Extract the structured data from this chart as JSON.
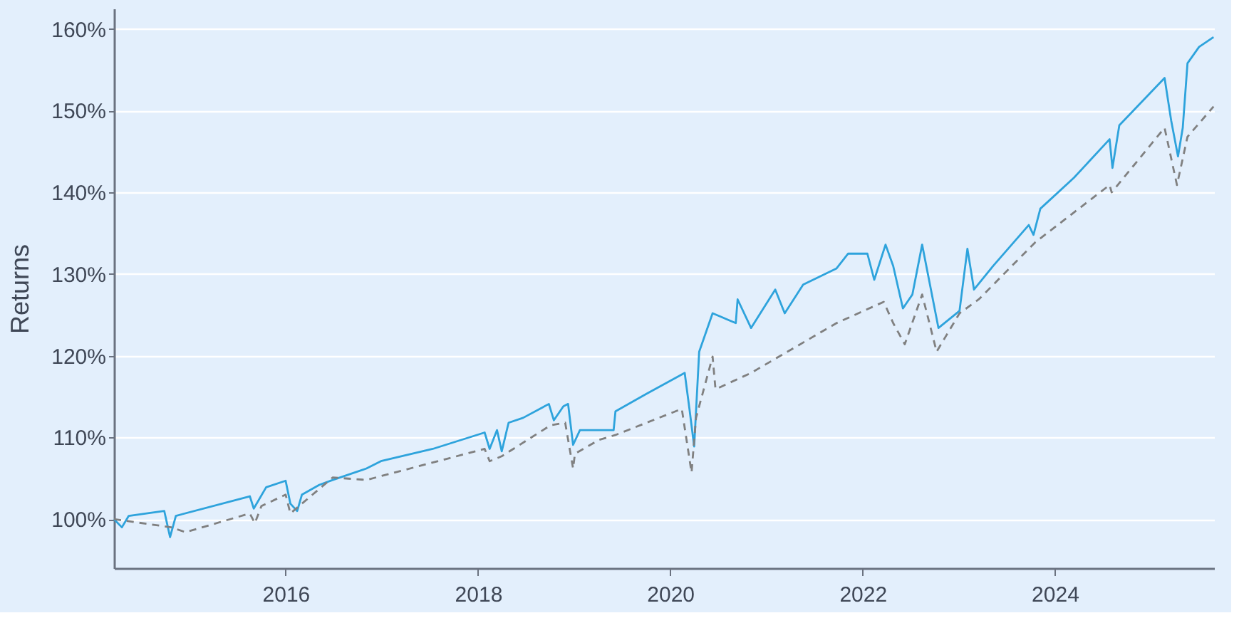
{
  "chart_data": {
    "type": "line",
    "ylabel": "Returns",
    "xlim": [
      "2014-03-20",
      "2025-08-28"
    ],
    "xticks": [
      {
        "value": "2016-01-01",
        "label": "2016"
      },
      {
        "value": "2018-01-01",
        "label": "2018"
      },
      {
        "value": "2020-01-01",
        "label": "2020"
      },
      {
        "value": "2022-01-01",
        "label": "2022"
      },
      {
        "value": "2024-01-01",
        "label": "2024"
      }
    ],
    "ylim": [
      94,
      162.5
    ],
    "yticks": [
      {
        "value": 100,
        "label": "100%"
      },
      {
        "value": 110,
        "label": "110%"
      },
      {
        "value": 120,
        "label": "120%"
      },
      {
        "value": 130,
        "label": "130%"
      },
      {
        "value": 140,
        "label": "140%"
      },
      {
        "value": 150,
        "label": "150%"
      },
      {
        "value": 160,
        "label": "160%"
      }
    ],
    "grid": "y",
    "series": [
      {
        "color": "#2ea3dc",
        "line_style": "solid",
        "x": [
          "2014-03-20",
          "2014-04-19",
          "2014-05-15",
          "2014-09-27",
          "2014-10-19",
          "2014-11-10",
          "2015-08-18",
          "2015-09-02",
          "2015-10-19",
          "2016-01-01",
          "2016-01-19",
          "2016-02-14",
          "2016-03-03",
          "2016-05-08",
          "2016-06-28",
          "2016-11-03",
          "2016-12-28",
          "2017-07-13",
          "2018-01-26",
          "2018-02-14",
          "2018-03-14",
          "2018-04-01",
          "2018-04-27",
          "2018-06-21",
          "2018-09-27",
          "2018-10-16",
          "2018-11-21",
          "2018-12-09",
          "2018-12-28",
          "2019-01-23",
          "2019-05-31",
          "2019-06-07",
          "2019-10-01",
          "2020-02-25",
          "2020-03-14",
          "2020-04-01",
          "2020-04-20",
          "2020-06-10",
          "2020-09-06",
          "2020-09-13",
          "2020-11-03",
          "2021-02-03",
          "2021-03-11",
          "2021-05-20",
          "2021-09-24",
          "2021-11-07",
          "2022-01-19",
          "2022-02-14",
          "2022-03-29",
          "2022-04-27",
          "2022-06-03",
          "2022-07-09",
          "2022-08-15",
          "2022-10-16",
          "2023-01-04",
          "2023-02-03",
          "2023-02-28",
          "2023-05-12",
          "2023-09-24",
          "2023-10-12",
          "2023-11-07",
          "2024-03-14",
          "2024-07-27",
          "2024-08-07",
          "2024-09-02",
          "2025-02-21",
          "2025-03-18",
          "2025-04-13",
          "2025-05-01",
          "2025-05-19",
          "2025-07-02",
          "2025-08-26"
        ],
        "values": [
          100.0,
          99.0,
          100.4,
          101.0,
          97.8,
          100.4,
          102.8,
          101.3,
          103.9,
          104.7,
          101.9,
          101.0,
          103.0,
          104.2,
          104.8,
          106.2,
          107.1,
          108.6,
          110.6,
          108.6,
          110.9,
          108.3,
          111.8,
          112.4,
          114.1,
          112.1,
          113.8,
          114.1,
          109.1,
          110.9,
          110.9,
          113.2,
          115.3,
          117.9,
          113.5,
          108.9,
          120.5,
          125.2,
          124.0,
          126.9,
          123.4,
          128.1,
          125.2,
          128.7,
          130.7,
          132.5,
          132.5,
          129.3,
          133.6,
          131.0,
          125.8,
          127.5,
          133.6,
          123.4,
          125.5,
          133.1,
          128.1,
          131.0,
          136.0,
          134.8,
          138.0,
          141.8,
          146.5,
          143.0,
          148.2,
          154.0,
          148.8,
          144.4,
          147.9,
          155.8,
          157.8,
          159.0
        ]
      },
      {
        "color": "#808080",
        "line_style": "dashed",
        "x": [
          "2014-03-20",
          "2014-10-23",
          "2014-12-17",
          "2015-08-18",
          "2015-09-06",
          "2015-10-01",
          "2016-01-01",
          "2016-01-19",
          "2016-06-28",
          "2016-11-03",
          "2018-01-26",
          "2018-02-14",
          "2018-04-01",
          "2018-10-04",
          "2018-11-28",
          "2018-12-28",
          "2019-01-04",
          "2019-04-05",
          "2019-06-07",
          "2020-02-14",
          "2020-03-22",
          "2020-04-08",
          "2020-06-10",
          "2020-06-21",
          "2020-11-03",
          "2021-09-24",
          "2022-03-22",
          "2022-04-27",
          "2022-06-10",
          "2022-08-15",
          "2022-10-09",
          "2023-01-04",
          "2023-03-18",
          "2023-10-19",
          "2024-07-27",
          "2024-08-04",
          "2025-02-21",
          "2025-04-09",
          "2025-05-19",
          "2025-08-26"
        ],
        "values": [
          100.0,
          99.0,
          98.4,
          100.7,
          99.5,
          101.6,
          103.0,
          100.7,
          105.1,
          104.8,
          108.6,
          107.1,
          107.7,
          111.5,
          111.8,
          106.2,
          108.0,
          109.7,
          110.3,
          113.5,
          105.7,
          112.4,
          119.9,
          115.9,
          117.9,
          124.0,
          126.6,
          124.0,
          121.4,
          127.5,
          120.5,
          125.2,
          126.9,
          133.9,
          140.9,
          140.0,
          147.9,
          140.9,
          146.8,
          150.5
        ]
      }
    ]
  }
}
